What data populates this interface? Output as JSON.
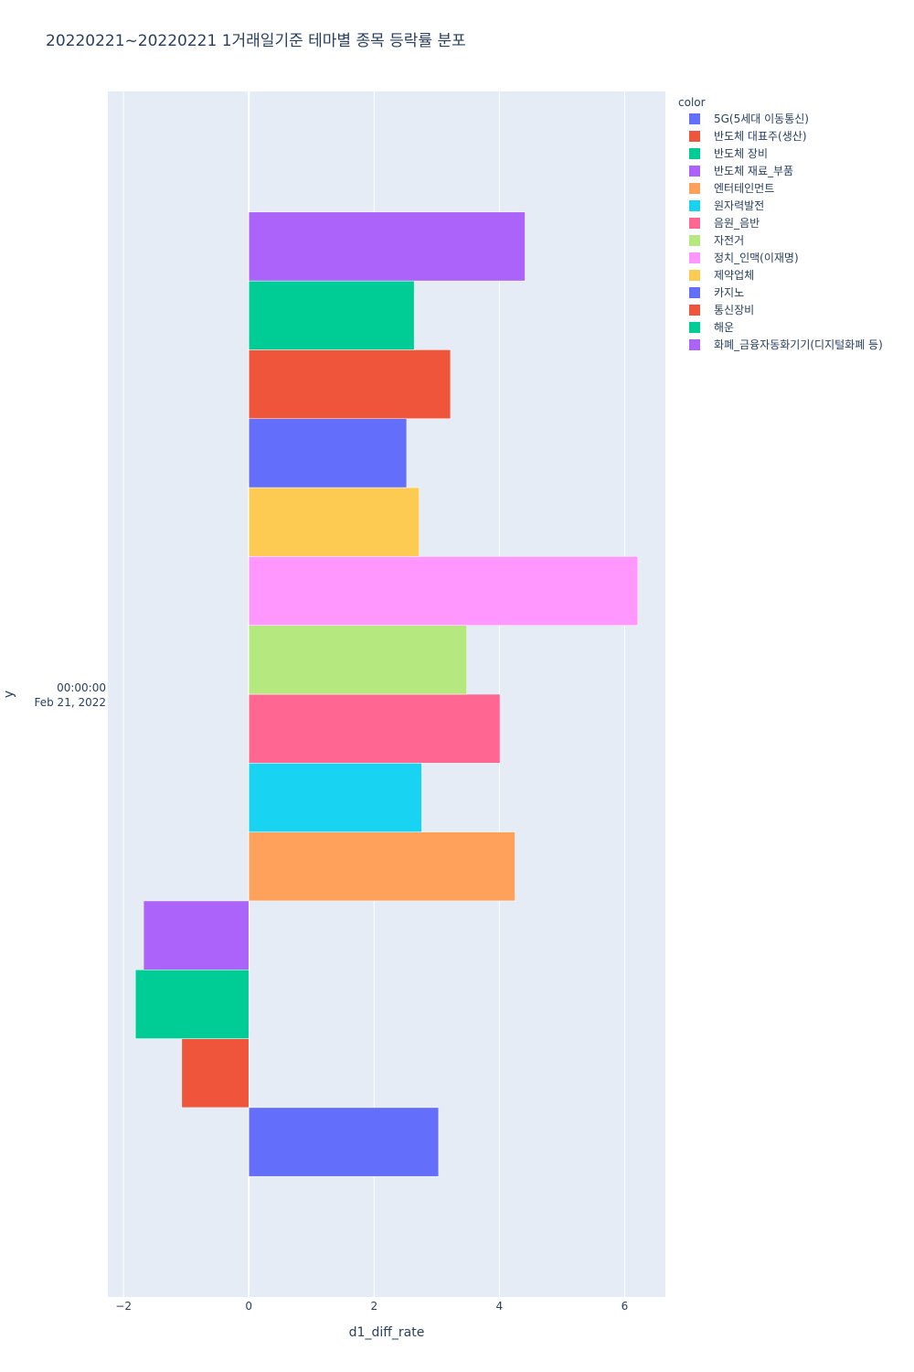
{
  "chart_data": {
    "type": "bar",
    "orientation": "horizontal",
    "barmode": "group",
    "title": "20220221~20220221 1거래일기준 테마별 종목 등락률 분포",
    "xlabel": "d1_diff_rate",
    "ylabel": "y",
    "y_category_label": [
      "00:00:00",
      "Feb 21, 2022"
    ],
    "xlim": [
      -2.25,
      6.65
    ],
    "x_ticks": [
      -2,
      0,
      2,
      4,
      6
    ],
    "x_tick_labels": [
      "−2",
      "0",
      "2",
      "4",
      "6"
    ],
    "grid": true,
    "legend": {
      "title": "color",
      "placement": "top-right"
    },
    "series": [
      {
        "name": "5G(5세대 이동통신)",
        "value": 3.03,
        "color": "#636efa"
      },
      {
        "name": "반도체 대표주(생산)",
        "value": -1.07,
        "color": "#EF553B"
      },
      {
        "name": "반도체 장비",
        "value": -1.81,
        "color": "#00cc96"
      },
      {
        "name": "반도체 재료_부품",
        "value": -1.68,
        "color": "#ab63fa"
      },
      {
        "name": "엔터테인먼트",
        "value": 4.25,
        "color": "#FFA15A"
      },
      {
        "name": "원자력발전",
        "value": 2.76,
        "color": "#19d3f3"
      },
      {
        "name": "음원_음반",
        "value": 4.01,
        "color": "#FF6692"
      },
      {
        "name": "자전거",
        "value": 3.48,
        "color": "#B6E880"
      },
      {
        "name": "정치_인맥(이재명)",
        "value": 6.21,
        "color": "#FF97FF"
      },
      {
        "name": "제약업체",
        "value": 2.72,
        "color": "#FECB52"
      },
      {
        "name": "카지노",
        "value": 2.52,
        "color": "#636efa"
      },
      {
        "name": "통신장비",
        "value": 3.22,
        "color": "#EF553B"
      },
      {
        "name": "해운",
        "value": 2.64,
        "color": "#00cc96"
      },
      {
        "name": "화폐_금융자동화기기(디지털화폐 등)",
        "value": 4.41,
        "color": "#ab63fa"
      }
    ]
  }
}
